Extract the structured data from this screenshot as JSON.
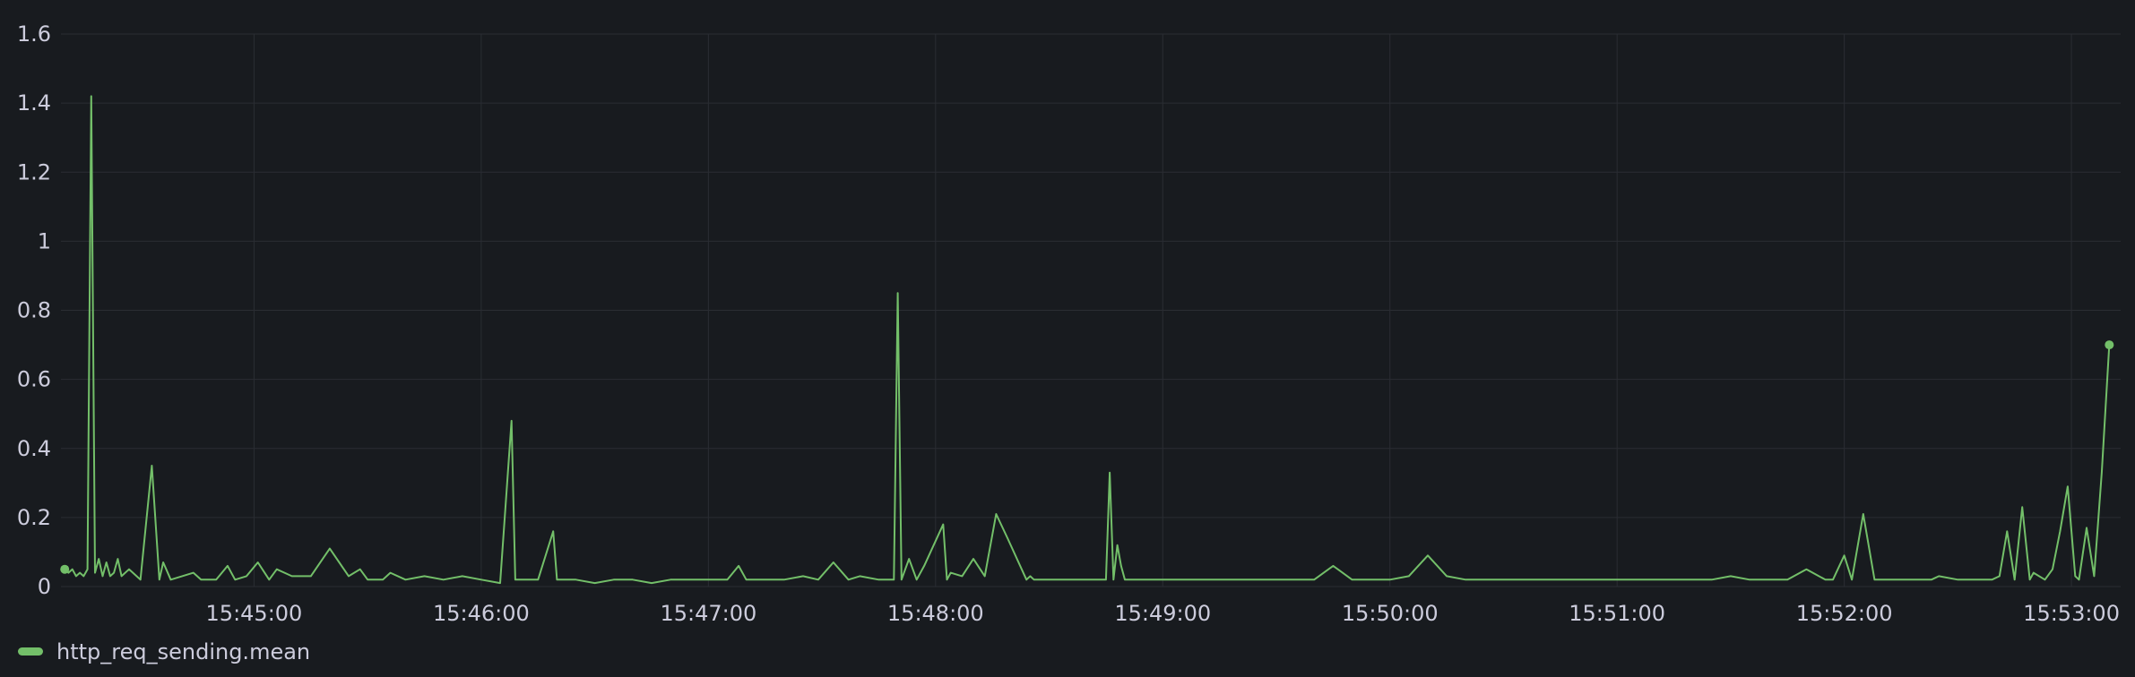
{
  "panel": {
    "background": "#181b1f",
    "grid_color": "#2a2d33",
    "text_color": "#ccccdc"
  },
  "chart_data": {
    "type": "line",
    "title": "",
    "xlabel": "",
    "ylabel": "",
    "ylim": [
      0,
      1.6
    ],
    "y_ticks": [
      0,
      0.2,
      0.4,
      0.6,
      0.8,
      1,
      1.2,
      1.4,
      1.6
    ],
    "y_tick_labels": [
      "0",
      "0.2",
      "0.4",
      "0.6",
      "0.8",
      "1",
      "1.2",
      "1.4",
      "1.6"
    ],
    "xlim": [
      "15:44:09",
      "15:53:13"
    ],
    "x_ticks": [
      "15:45:00",
      "15:46:00",
      "15:47:00",
      "15:48:00",
      "15:49:00",
      "15:50:00",
      "15:51:00",
      "15:52:00",
      "15:53:00"
    ],
    "grid": true,
    "legend_position": "bottom-left",
    "series": [
      {
        "name": "http_req_sending.mean",
        "color": "#73bf69",
        "x": [
          "15:44:10",
          "15:44:11",
          "15:44:12",
          "15:44:13",
          "15:44:14",
          "15:44:15",
          "15:44:16",
          "15:44:17",
          "15:44:18",
          "15:44:19",
          "15:44:20",
          "15:44:21",
          "15:44:22",
          "15:44:23",
          "15:44:24",
          "15:44:25",
          "15:44:27",
          "15:44:30",
          "15:44:33",
          "15:44:35",
          "15:44:36",
          "15:44:38",
          "15:44:41",
          "15:44:44",
          "15:44:46",
          "15:44:50",
          "15:44:53",
          "15:44:55",
          "15:44:58",
          "15:45:01",
          "15:45:04",
          "15:45:06",
          "15:45:10",
          "15:45:15",
          "15:45:20",
          "15:45:25",
          "15:45:28",
          "15:45:30",
          "15:45:32",
          "15:45:34",
          "15:45:36",
          "15:45:40",
          "15:45:45",
          "15:45:50",
          "15:45:55",
          "15:46:00",
          "15:46:05",
          "15:46:08",
          "15:46:09",
          "15:46:10",
          "15:46:15",
          "15:46:19",
          "15:46:20",
          "15:46:21",
          "15:46:25",
          "15:46:30",
          "15:46:35",
          "15:46:40",
          "15:46:45",
          "15:46:50",
          "15:46:55",
          "15:47:00",
          "15:47:05",
          "15:47:08",
          "15:47:10",
          "15:47:15",
          "15:47:20",
          "15:47:25",
          "15:47:29",
          "15:47:33",
          "15:47:37",
          "15:47:40",
          "15:47:45",
          "15:47:49",
          "15:47:50",
          "15:47:51",
          "15:47:53",
          "15:47:55",
          "15:47:57",
          "15:48:02",
          "15:48:03",
          "15:48:04",
          "15:48:07",
          "15:48:10",
          "15:48:13",
          "15:48:16",
          "15:48:19",
          "15:48:24",
          "15:48:25",
          "15:48:26",
          "15:48:28",
          "15:48:30",
          "15:48:35",
          "15:48:40",
          "15:48:45",
          "15:48:46",
          "15:48:47",
          "15:48:48",
          "15:48:49",
          "15:48:50",
          "15:48:55",
          "15:49:00",
          "15:49:05",
          "15:49:10",
          "15:49:15",
          "15:49:20",
          "15:49:25",
          "15:49:30",
          "15:49:35",
          "15:49:40",
          "15:49:45",
          "15:49:50",
          "15:49:55",
          "15:50:00",
          "15:50:05",
          "15:50:10",
          "15:50:15",
          "15:50:20",
          "15:50:25",
          "15:50:30",
          "15:50:35",
          "15:50:40",
          "15:50:45",
          "15:50:50",
          "15:50:55",
          "15:51:00",
          "15:51:05",
          "15:51:10",
          "15:51:13",
          "15:51:15",
          "15:51:20",
          "15:51:25",
          "15:51:30",
          "15:51:35",
          "15:51:40",
          "15:51:45",
          "15:51:50",
          "15:51:55",
          "15:51:57",
          "15:52:00",
          "15:52:02",
          "15:52:05",
          "15:52:08",
          "15:52:10",
          "15:52:15",
          "15:52:17",
          "15:52:20",
          "15:52:23",
          "15:52:25",
          "15:52:30",
          "15:52:35",
          "15:52:39",
          "15:52:41",
          "15:52:43",
          "15:52:45",
          "15:52:47",
          "15:52:49",
          "15:52:50",
          "15:52:53",
          "15:52:55",
          "15:52:57",
          "15:52:59",
          "15:53:01",
          "15:53:02",
          "15:53:04",
          "15:53:06",
          "15:53:08",
          "15:53:10"
        ],
        "values": [
          0.05,
          0.04,
          0.05,
          0.03,
          0.04,
          0.03,
          0.05,
          1.42,
          0.04,
          0.08,
          0.03,
          0.07,
          0.03,
          0.04,
          0.08,
          0.03,
          0.05,
          0.02,
          0.35,
          0.02,
          0.07,
          0.02,
          0.03,
          0.04,
          0.02,
          0.02,
          0.06,
          0.02,
          0.03,
          0.07,
          0.02,
          0.05,
          0.03,
          0.03,
          0.11,
          0.03,
          0.05,
          0.02,
          0.02,
          0.02,
          0.04,
          0.02,
          0.03,
          0.02,
          0.03,
          0.02,
          0.01,
          0.48,
          0.02,
          0.02,
          0.02,
          0.16,
          0.02,
          0.02,
          0.02,
          0.01,
          0.02,
          0.02,
          0.01,
          0.02,
          0.02,
          0.02,
          0.02,
          0.06,
          0.02,
          0.02,
          0.02,
          0.03,
          0.02,
          0.07,
          0.02,
          0.03,
          0.02,
          0.02,
          0.85,
          0.02,
          0.08,
          0.02,
          0.06,
          0.18,
          0.02,
          0.04,
          0.03,
          0.08,
          0.03,
          0.21,
          0.14,
          0.02,
          0.03,
          0.02,
          0.02,
          0.02,
          0.02,
          0.02,
          0.02,
          0.33,
          0.02,
          0.12,
          0.06,
          0.02,
          0.02,
          0.02,
          0.02,
          0.02,
          0.02,
          0.02,
          0.02,
          0.02,
          0.02,
          0.02,
          0.06,
          0.02,
          0.02,
          0.02,
          0.03,
          0.09,
          0.03,
          0.02,
          0.02,
          0.02,
          0.02,
          0.02,
          0.02,
          0.02,
          0.02,
          0.02,
          0.02,
          0.02,
          0.02,
          0.02,
          0.02,
          0.02,
          0.03,
          0.02,
          0.02,
          0.02,
          0.05,
          0.02,
          0.02,
          0.09,
          0.02,
          0.21,
          0.02,
          0.02,
          0.02,
          0.02,
          0.02,
          0.02,
          0.03,
          0.02,
          0.02,
          0.02,
          0.03,
          0.16,
          0.02,
          0.23,
          0.02,
          0.04,
          0.02,
          0.05,
          0.16,
          0.29,
          0.03,
          0.02,
          0.17,
          0.03,
          0.33,
          0.7
        ]
      }
    ]
  }
}
